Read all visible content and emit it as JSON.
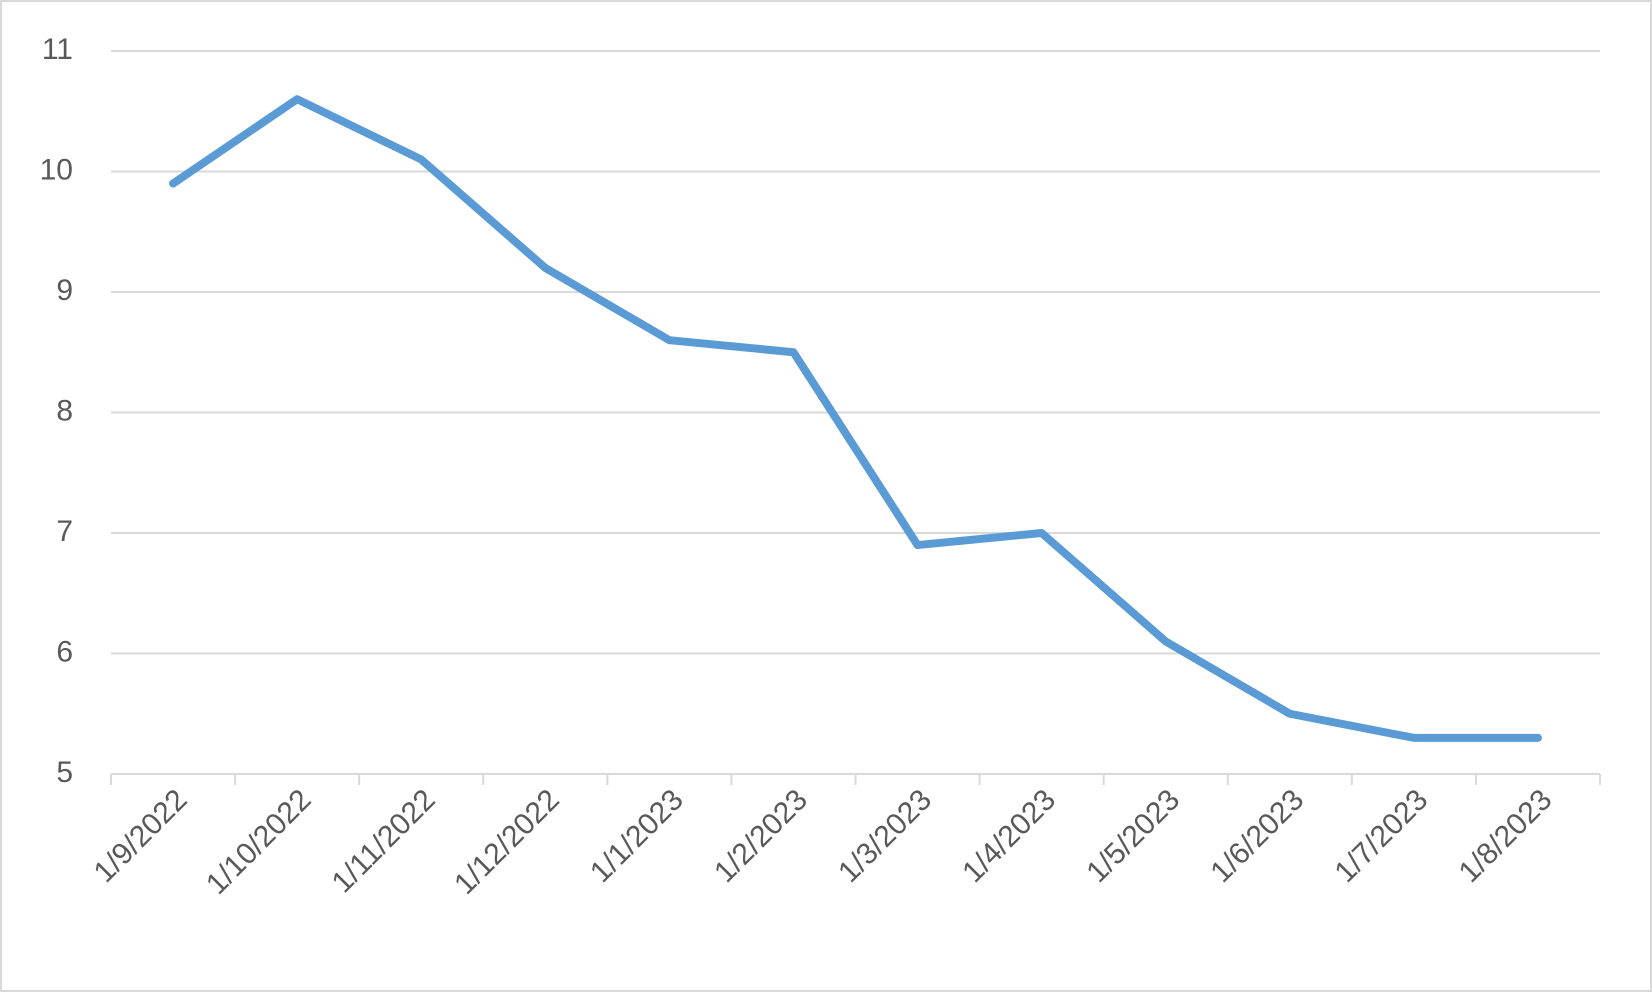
{
  "chart_data": {
    "type": "line",
    "categories": [
      "1/9/2022",
      "1/10/2022",
      "1/11/2022",
      "1/12/2022",
      "1/1/2023",
      "1/2/2023",
      "1/3/2023",
      "1/4/2023",
      "1/5/2023",
      "1/6/2023",
      "1/7/2023",
      "1/8/2023"
    ],
    "values": [
      9.9,
      10.6,
      10.1,
      9.2,
      8.6,
      8.5,
      6.9,
      7.0,
      6.1,
      5.5,
      5.3,
      5.3
    ],
    "color": "#5b9bd5",
    "ylim": [
      5,
      11
    ],
    "yticks": [
      5,
      6,
      7,
      8,
      9,
      10,
      11
    ],
    "grid": true
  }
}
